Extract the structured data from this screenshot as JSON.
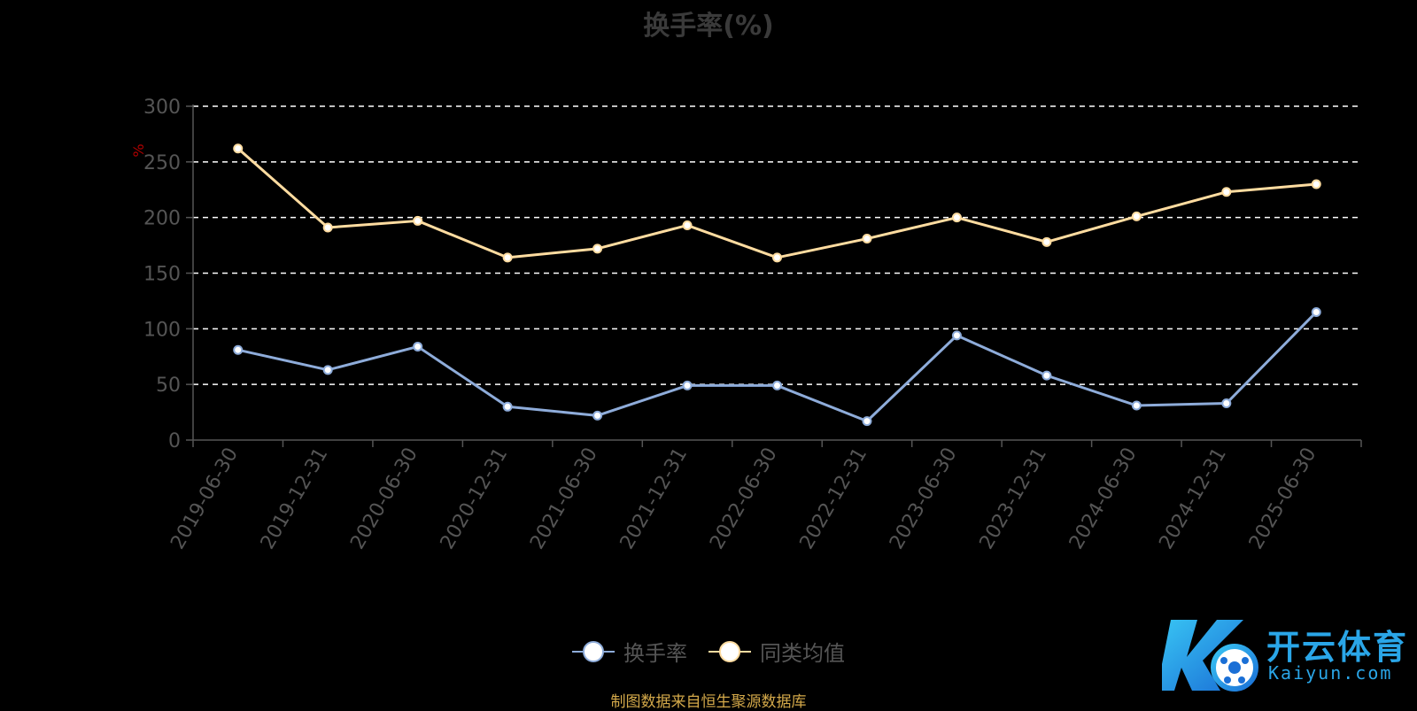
{
  "title": "换手率(%)",
  "source": "制图数据来自恒生聚源数据库",
  "watermark": {
    "text": "开云体育",
    "sub": "Kaiyun.com"
  },
  "colors": {
    "series_0": "#8eacda",
    "series_1": "#ffdca0",
    "axis_text": "#555555",
    "unit": "#b00000",
    "grid": "#ffffff",
    "source": "#d4a94a"
  },
  "chart_data": {
    "type": "line",
    "ylabel": "%",
    "ylim": [
      0,
      300
    ],
    "yticks": [
      0,
      50,
      100,
      150,
      200,
      250,
      300
    ],
    "grid": true,
    "legend_position": "bottom",
    "categories": [
      "2019-06-30",
      "2019-12-31",
      "2020-06-30",
      "2020-12-31",
      "2021-06-30",
      "2021-12-31",
      "2022-06-30",
      "2022-12-31",
      "2023-06-30",
      "2023-12-31",
      "2024-06-30",
      "2024-12-31",
      "2025-06-30"
    ],
    "series": [
      {
        "name": "换手率",
        "values": [
          81,
          63,
          84,
          30,
          22,
          49,
          49,
          17,
          94,
          58,
          31,
          33,
          115
        ]
      },
      {
        "name": "同类均值",
        "values": [
          262,
          191,
          197,
          164,
          172,
          193,
          164,
          181,
          200,
          178,
          201,
          223,
          230
        ]
      }
    ]
  }
}
